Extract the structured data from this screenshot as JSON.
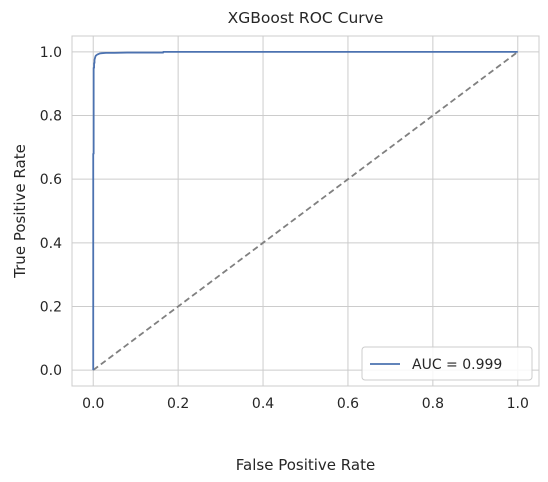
{
  "chart_data": {
    "type": "line",
    "title": "XGBoost ROC Curve",
    "xlabel": "False Positive Rate",
    "ylabel": "True Positive Rate",
    "xlim": [
      -0.05,
      1.05
    ],
    "ylim": [
      -0.05,
      1.05
    ],
    "xticks": [
      "0.0",
      "0.2",
      "0.4",
      "0.6",
      "0.8",
      "1.0"
    ],
    "yticks": [
      "0.0",
      "0.2",
      "0.4",
      "0.6",
      "0.8",
      "1.0"
    ],
    "grid": true,
    "legend_position": "lower-right",
    "series": [
      {
        "name": "AUC = 0.999",
        "color": "#4c72b0",
        "style": "solid",
        "x": [
          0.0,
          0.0,
          0.001,
          0.001,
          0.002,
          0.002,
          0.003,
          0.003,
          0.004,
          0.005,
          0.006,
          0.008,
          0.01,
          0.012,
          0.015,
          0.02,
          0.03,
          0.05,
          0.08,
          0.12,
          0.165,
          0.165,
          0.3,
          0.5,
          0.7,
          0.9,
          1.0
        ],
        "y": [
          0.0,
          0.68,
          0.68,
          0.95,
          0.95,
          0.965,
          0.965,
          0.975,
          0.98,
          0.985,
          0.988,
          0.99,
          0.992,
          0.993,
          0.995,
          0.996,
          0.997,
          0.997,
          0.998,
          0.998,
          0.998,
          1.0,
          1.0,
          1.0,
          1.0,
          1.0,
          1.0
        ]
      },
      {
        "name": "",
        "color": "#808080",
        "style": "dashed",
        "x": [
          0,
          1
        ],
        "y": [
          0,
          1
        ]
      }
    ]
  }
}
